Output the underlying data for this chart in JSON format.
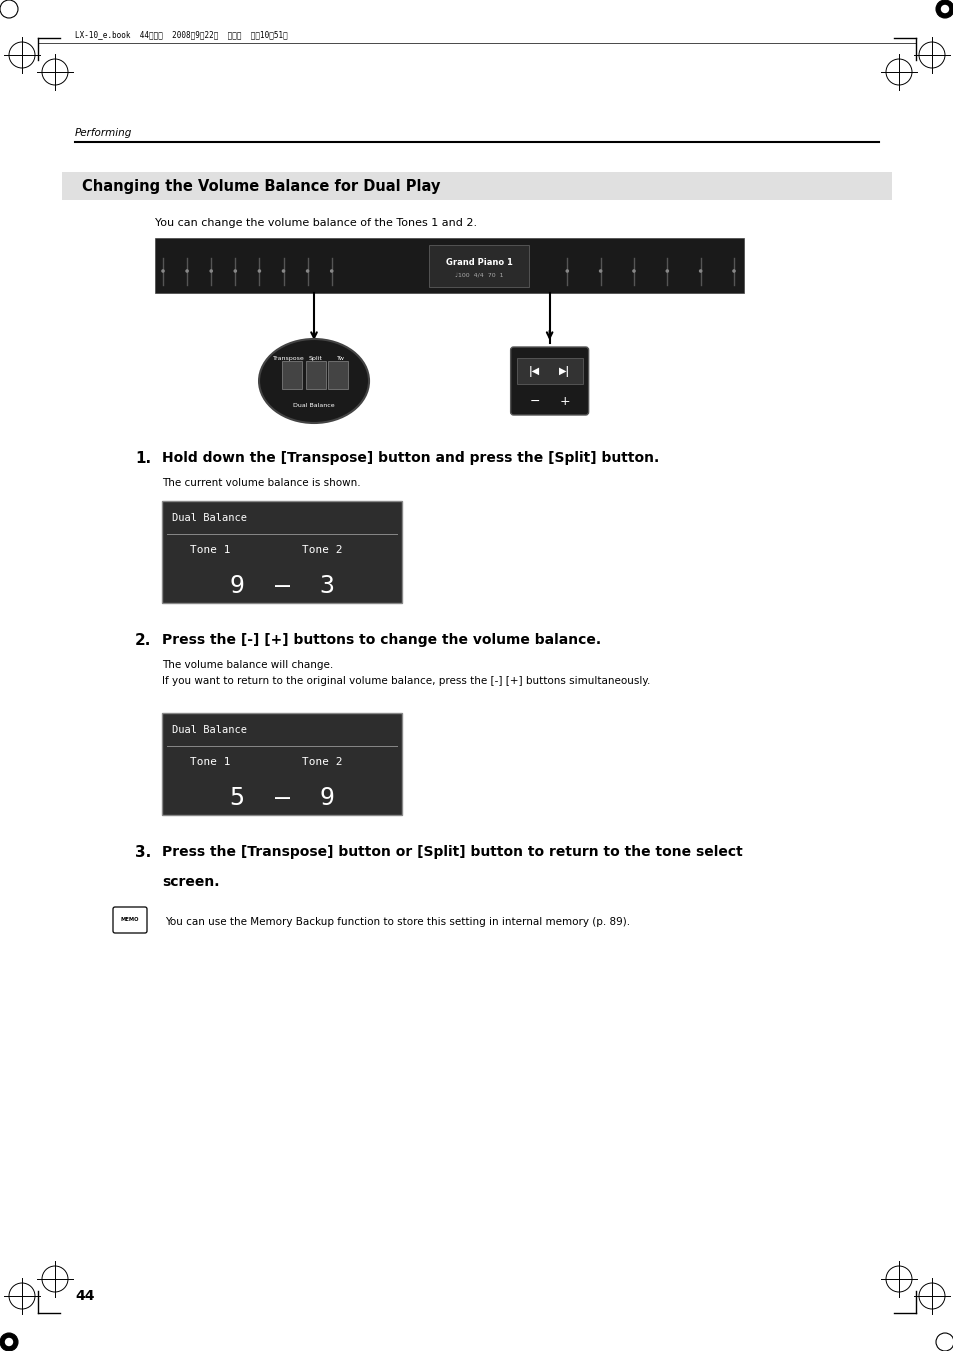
{
  "page_bg": "#ffffff",
  "page_width": 9.54,
  "page_height": 13.51,
  "dpi": 100,
  "header_text": "LX-10_e.book  44ページ  2008年9月22日  月曜日  午前10時51分",
  "section_label": "Performing",
  "title_box_text": "Changing the Volume Balance for Dual Play",
  "title_box_bg": "#e0e0e0",
  "intro_text": "You can change the volume balance of the Tones 1 and 2.",
  "step1_num": "1.",
  "step1_bold": "Hold down the [Transpose] button and press the [Split] button.",
  "step1_sub": "The current volume balance is shown.",
  "step1_screen_title": "Dual Balance",
  "step1_tone1": "Tone 1",
  "step1_tone2": "Tone 2",
  "step1_values": "9  –  3",
  "step2_num": "2.",
  "step2_bold": "Press the [-] [+] buttons to change the volume balance.",
  "step2_sub1": "The volume balance will change.",
  "step2_sub2": "If you want to return to the original volume balance, press the [-] [+] buttons simultaneously.",
  "step2_screen_title": "Dual Balance",
  "step2_tone1": "Tone 1",
  "step2_tone2": "Tone 2",
  "step2_values": "5  –  9",
  "step3_num": "3.",
  "step3_bold_line1": "Press the [Transpose] button or [Split] button to return to the tone select",
  "step3_bold_line2": "screen.",
  "memo_text": "You can use the Memory Backup function to store this setting in internal memory (p. 89).",
  "page_number": "44",
  "screen_bg": "#2d2d2d",
  "screen_fg": "#ffffff",
  "screen_border": "#888888"
}
